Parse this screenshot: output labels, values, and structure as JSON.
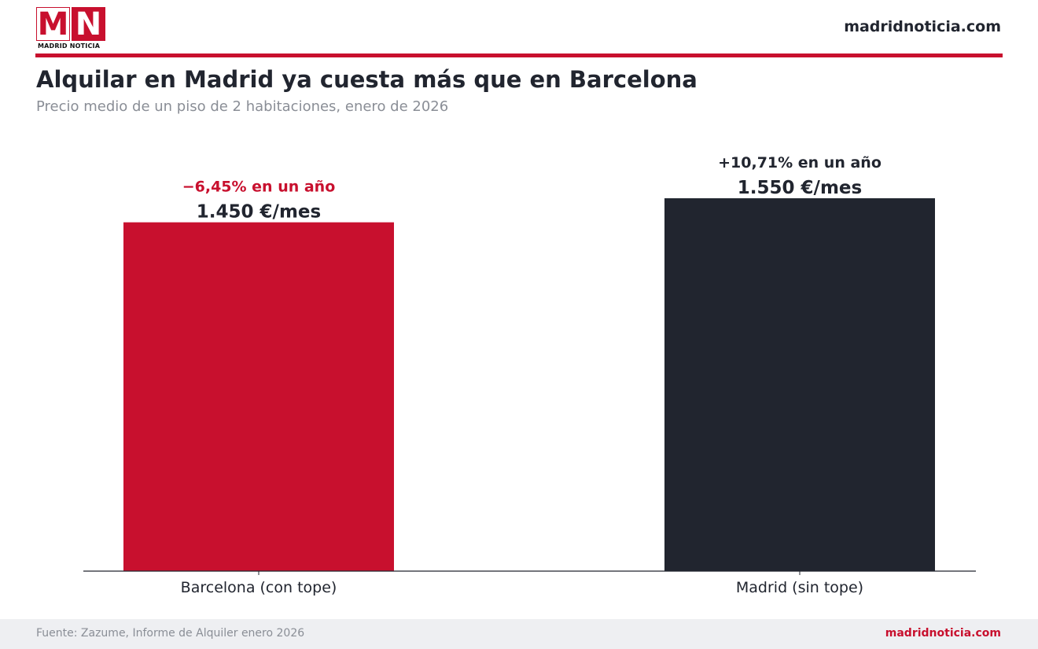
{
  "brand": {
    "logo_letters": [
      "M",
      "N"
    ],
    "logo_wordmark": "MADRID NOTICIA",
    "site": "madridnoticia.com",
    "accent_color": "#c8102e"
  },
  "header": {
    "title": "Alquilar en Madrid ya cuesta más que en Barcelona",
    "subtitle": "Precio medio de un piso de 2 habitaciones, enero de 2026"
  },
  "chart_data": {
    "type": "bar",
    "categories": [
      "Barcelona (con tope)",
      "Madrid (sin tope)"
    ],
    "values": [
      1450,
      1550
    ],
    "value_labels": [
      "1.450 €/mes",
      "1.550 €/mes"
    ],
    "change_labels": [
      "−6,45% en un año",
      "+10,71% en un año"
    ],
    "bar_colors": [
      "#c8102e",
      "#21252f"
    ],
    "change_colors": [
      "#c8102e",
      "#21252f"
    ],
    "ylim": [
      0,
      1900
    ],
    "grid": false,
    "xlabel": "",
    "ylabel": ""
  },
  "footer": {
    "source": "Fuente: Zazume, Informe de Alquiler enero 2026",
    "site": "madridnoticia.com"
  }
}
